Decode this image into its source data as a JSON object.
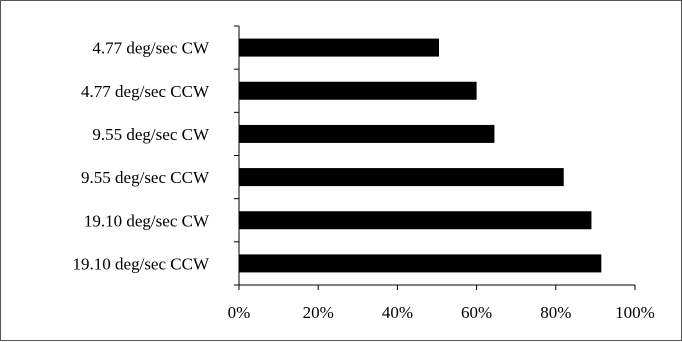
{
  "chart_data": {
    "type": "bar",
    "orientation": "horizontal",
    "categories": [
      "4.77 deg/sec CW",
      "4.77 deg/sec CCW",
      "9.55 deg/sec CW",
      "9.55 deg/sec CCW",
      "19.10 deg/sec CW",
      "19.10 deg/sec CCW"
    ],
    "values": [
      50.5,
      60,
      64.5,
      82,
      89,
      91.5
    ],
    "xlim": [
      0,
      100
    ],
    "x_ticks": [
      "0%",
      "20%",
      "40%",
      "60%",
      "80%",
      "100%"
    ],
    "x_tick_values": [
      0,
      20,
      40,
      60,
      80,
      100
    ],
    "title": "",
    "xlabel": "",
    "ylabel": "",
    "grid": false,
    "legend": "none",
    "bar_color": "#000000",
    "axis_color": "#000000"
  }
}
